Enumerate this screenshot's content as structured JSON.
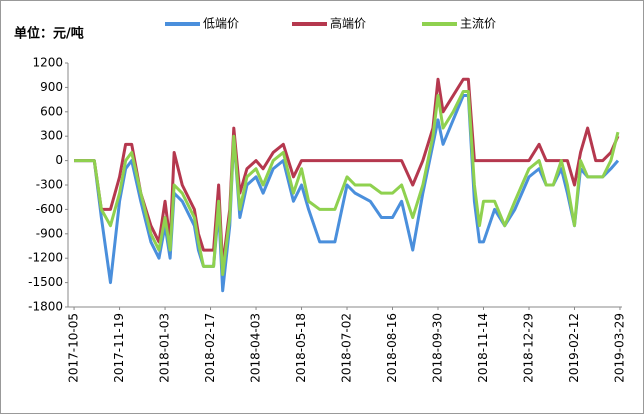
{
  "chart_data": {
    "type": "line",
    "unit_label": "单位：元/吨",
    "x": [
      "2017-10-05",
      "2017-10-25",
      "2017-11-01",
      "2017-11-10",
      "2017-11-19",
      "2017-11-25",
      "2017-12-01",
      "2017-12-10",
      "2017-12-20",
      "2017-12-28",
      "2018-01-03",
      "2018-01-08",
      "2018-01-12",
      "2018-01-20",
      "2018-02-01",
      "2018-02-05",
      "2018-02-10",
      "2018-02-20",
      "2018-02-25",
      "2018-03-01",
      "2018-03-08",
      "2018-03-12",
      "2018-03-18",
      "2018-03-25",
      "2018-04-03",
      "2018-04-10",
      "2018-04-20",
      "2018-04-30",
      "2018-05-10",
      "2018-05-18",
      "2018-05-25",
      "2018-06-05",
      "2018-06-20",
      "2018-07-02",
      "2018-07-10",
      "2018-07-25",
      "2018-08-05",
      "2018-08-16",
      "2018-08-25",
      "2018-09-05",
      "2018-09-15",
      "2018-09-25",
      "2018-09-30",
      "2018-10-05",
      "2018-10-15",
      "2018-10-25",
      "2018-10-30",
      "2018-11-05",
      "2018-11-10",
      "2018-11-14",
      "2018-11-25",
      "2018-12-05",
      "2018-12-15",
      "2018-12-22",
      "2018-12-29",
      "2019-01-08",
      "2019-01-15",
      "2019-01-22",
      "2019-01-30",
      "2019-02-05",
      "2019-02-12",
      "2019-02-18",
      "2019-02-25",
      "2019-03-05",
      "2019-03-12",
      "2019-03-20",
      "2019-03-27"
    ],
    "series": [
      {
        "name": "低端价",
        "color": "#4a8fdc",
        "values": [
          0,
          0,
          -700,
          -1500,
          -500,
          -100,
          0,
          -500,
          -1000,
          -1200,
          -800,
          -1200,
          -400,
          -500,
          -800,
          -1100,
          -1300,
          -1300,
          -600,
          -1600,
          -800,
          300,
          -700,
          -300,
          -200,
          -400,
          -100,
          0,
          -500,
          -300,
          -600,
          -1000,
          -1000,
          -300,
          -400,
          -500,
          -700,
          -700,
          -500,
          -1100,
          -400,
          200,
          500,
          200,
          500,
          800,
          800,
          -500,
          -1000,
          -1000,
          -600,
          -800,
          -600,
          -400,
          -200,
          -100,
          -300,
          -300,
          -100,
          -400,
          -800,
          -100,
          -200,
          -200,
          -200,
          -100,
          0
        ]
      },
      {
        "name": "高端价",
        "color": "#b5384e",
        "values": [
          0,
          0,
          -600,
          -600,
          -200,
          200,
          200,
          -400,
          -800,
          -1000,
          -500,
          -1000,
          100,
          -300,
          -600,
          -900,
          -1100,
          -1100,
          -300,
          -1300,
          -600,
          400,
          -400,
          -100,
          0,
          -100,
          100,
          200,
          -200,
          0,
          0,
          0,
          0,
          0,
          0,
          0,
          0,
          0,
          0,
          -300,
          0,
          400,
          1000,
          600,
          800,
          1000,
          1000,
          0,
          0,
          0,
          0,
          0,
          0,
          0,
          0,
          200,
          0,
          0,
          0,
          0,
          -300,
          100,
          400,
          0,
          0,
          100,
          300
        ]
      },
      {
        "name": "主流价",
        "color": "#8fd14f",
        "values": [
          0,
          0,
          -600,
          -800,
          -400,
          0,
          100,
          -400,
          -900,
          -1100,
          -700,
          -1100,
          -300,
          -400,
          -700,
          -1000,
          -1300,
          -1300,
          -500,
          -1400,
          -700,
          300,
          -600,
          -200,
          -100,
          -300,
          0,
          100,
          -400,
          -100,
          -500,
          -600,
          -600,
          -200,
          -300,
          -300,
          -400,
          -400,
          -300,
          -700,
          -300,
          300,
          800,
          400,
          600,
          850,
          850,
          -300,
          -800,
          -500,
          -500,
          -800,
          -500,
          -300,
          -100,
          0,
          -300,
          -300,
          0,
          -300,
          -800,
          0,
          -200,
          -200,
          -200,
          0,
          350
        ]
      }
    ],
    "xlim": [
      "2017-09-29",
      "2019-03-31"
    ],
    "xticks": [
      "2017-10-05",
      "2017-11-19",
      "2018-01-03",
      "2018-02-17",
      "2018-04-03",
      "2018-05-18",
      "2018-07-02",
      "2018-08-16",
      "2018-09-30",
      "2018-11-14",
      "2018-12-29",
      "2019-02-12",
      "2019-03-29"
    ],
    "ylim": [
      -1800,
      1200
    ],
    "yticks": [
      -1800,
      -1500,
      -1200,
      -900,
      -600,
      -300,
      0,
      300,
      600,
      900,
      1200
    ],
    "grid": false
  }
}
